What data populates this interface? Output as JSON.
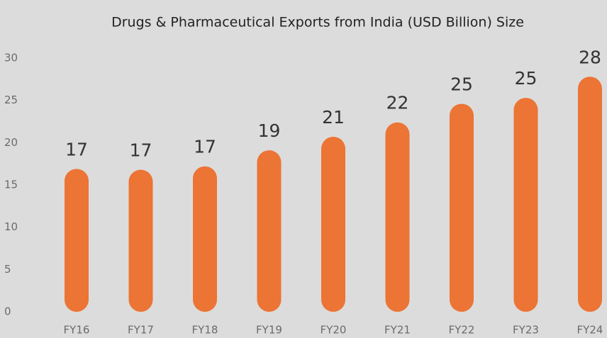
{
  "chart_data": {
    "type": "bar",
    "title": "Drugs & Pharmaceutical Exports from India (USD Billion) Size",
    "categories": [
      "FY16",
      "FY17",
      "FY18",
      "FY19",
      "FY20",
      "FY21",
      "FY22",
      "FY23",
      "FY24"
    ],
    "values": [
      16.9,
      16.8,
      17.2,
      19.1,
      20.7,
      22.4,
      24.6,
      25.3,
      27.8
    ],
    "value_labels": [
      "17",
      "17",
      "17",
      "19",
      "21",
      "22",
      "25",
      "25",
      "28"
    ],
    "color": "#ec7434",
    "ylim": [
      0,
      30
    ],
    "yticks": [
      0,
      5,
      10,
      15,
      20,
      25,
      30
    ],
    "grid": false
  }
}
